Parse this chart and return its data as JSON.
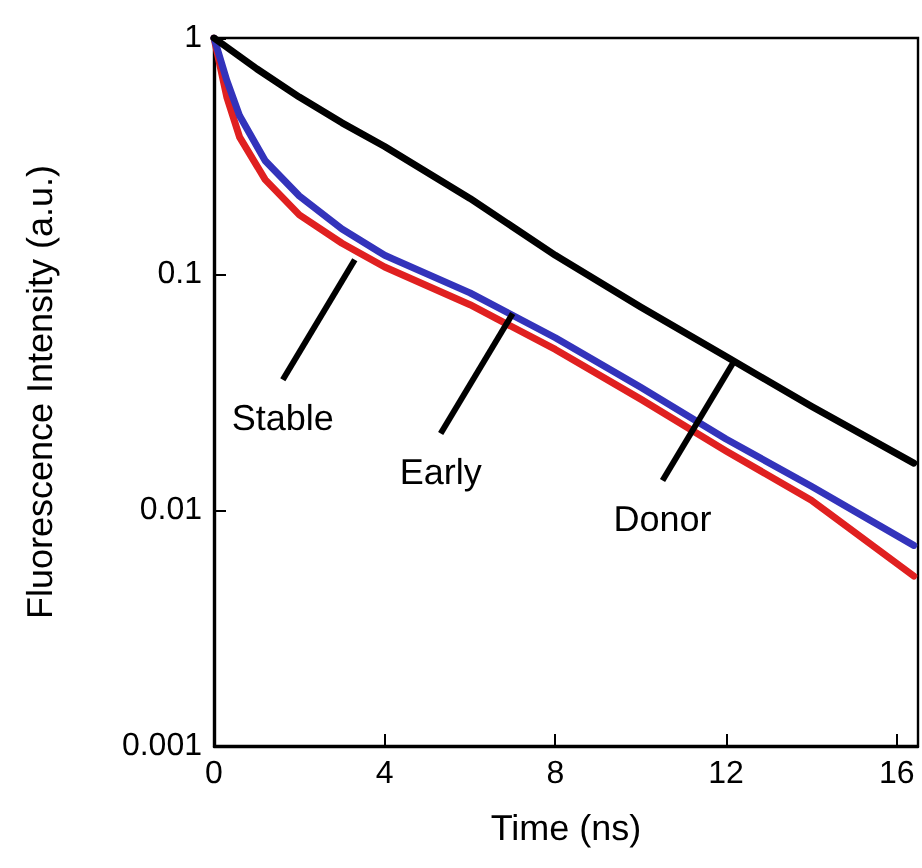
{
  "chart_data": {
    "type": "line",
    "xlabel": "Time (ns)",
    "ylabel": "Fluorescence Intensity (a.u.)",
    "log": "y",
    "xlim": [
      0,
      16.5
    ],
    "xticks": [
      0,
      4,
      8,
      12,
      16
    ],
    "ylim": [
      0.001,
      1
    ],
    "yticks": [
      0.001,
      0.01,
      0.1,
      1
    ],
    "grid": false,
    "legend": false,
    "marker": "none",
    "line_style": "solid",
    "series": [
      {
        "color": "#000000",
        "x": [
          0,
          1,
          2,
          3,
          4,
          6,
          8,
          10,
          12,
          14,
          16.4
        ],
        "values": [
          1,
          0.741,
          0.562,
          0.437,
          0.347,
          0.209,
          0.12,
          0.0724,
          0.0447,
          0.0275,
          0.0158
        ]
      },
      {
        "color": "#3333bb",
        "x": [
          0,
          0.3,
          0.6,
          1.2,
          2,
          3,
          4,
          6,
          8,
          10,
          12,
          14,
          16.4
        ],
        "values": [
          1,
          0.661,
          0.468,
          0.302,
          0.214,
          0.155,
          0.12,
          0.0832,
          0.0537,
          0.0331,
          0.02,
          0.0126,
          0.00708
        ]
      },
      {
        "color": "#e02020",
        "x": [
          0,
          0.3,
          0.6,
          1.2,
          2,
          3,
          4,
          6,
          8,
          10,
          12,
          14,
          16.4
        ],
        "values": [
          1,
          0.562,
          0.38,
          0.251,
          0.178,
          0.135,
          0.107,
          0.0741,
          0.0479,
          0.0295,
          0.0178,
          0.011,
          0.00525
        ]
      }
    ],
    "annotations": [
      {
        "text": "Stable",
        "x": 3.3,
        "y": 0.115
      },
      {
        "text": "Early",
        "x": 7,
        "y": 0.068
      },
      {
        "text": "Donor",
        "x": 12.2,
        "y": 0.043
      }
    ]
  }
}
